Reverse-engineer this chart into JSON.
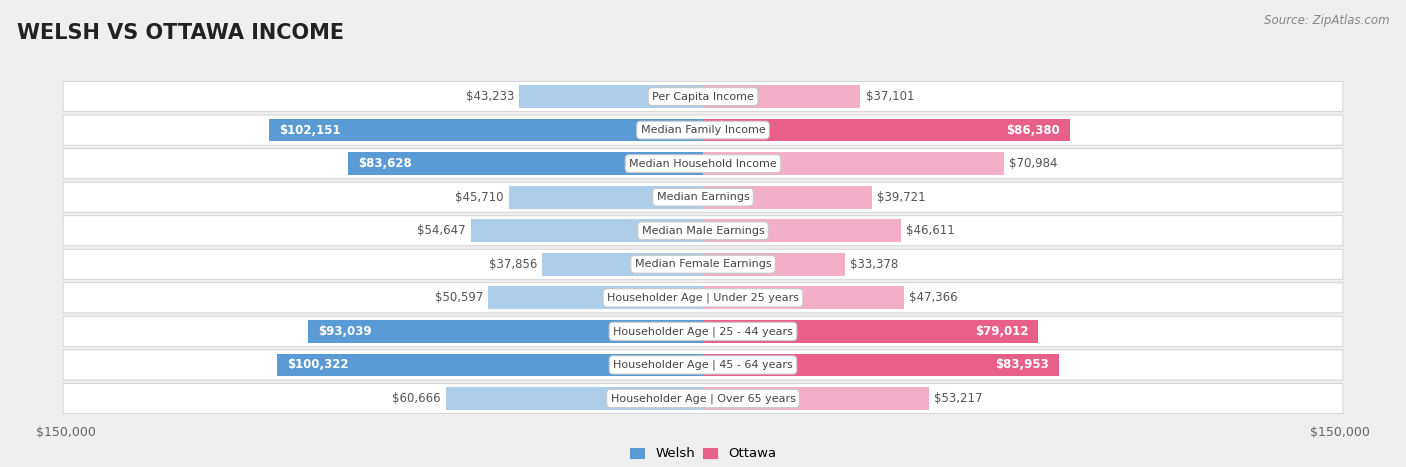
{
  "title": "WELSH VS OTTAWA INCOME",
  "source": "Source: ZipAtlas.com",
  "categories": [
    "Per Capita Income",
    "Median Family Income",
    "Median Household Income",
    "Median Earnings",
    "Median Male Earnings",
    "Median Female Earnings",
    "Householder Age | Under 25 years",
    "Householder Age | 25 - 44 years",
    "Householder Age | 45 - 64 years",
    "Householder Age | Over 65 years"
  ],
  "welsh_values": [
    43233,
    102151,
    83628,
    45710,
    54647,
    37856,
    50597,
    93039,
    100322,
    60666
  ],
  "ottawa_values": [
    37101,
    86380,
    70984,
    39721,
    46611,
    33378,
    47366,
    79012,
    83953,
    53217
  ],
  "welsh_labels": [
    "$43,233",
    "$102,151",
    "$83,628",
    "$45,710",
    "$54,647",
    "$37,856",
    "$50,597",
    "$93,039",
    "$100,322",
    "$60,666"
  ],
  "ottawa_labels": [
    "$37,101",
    "$86,380",
    "$70,984",
    "$39,721",
    "$46,611",
    "$33,378",
    "$47,366",
    "$79,012",
    "$83,953",
    "$53,217"
  ],
  "max_val": 150000,
  "welsh_color_strong": "#5b9bd5",
  "welsh_color_light": "#aecde8",
  "ottawa_color_strong": "#e8608a",
  "ottawa_color_light": "#f4afc8",
  "bg_color": "#efefef",
  "row_bg": "white",
  "legend_welsh": "Welsh",
  "legend_ottawa": "Ottawa",
  "strong_threshold": 75000,
  "title_fontsize": 15,
  "label_fontsize": 8.5,
  "cat_fontsize": 8.0
}
